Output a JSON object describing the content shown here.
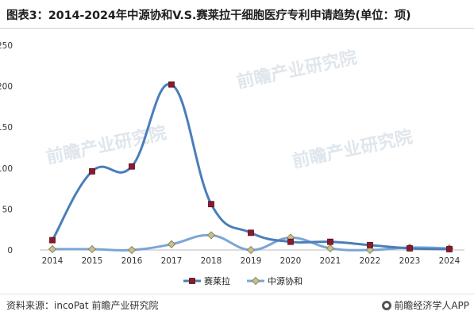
{
  "title": "图表3：2014-2024年中源协和V.S.赛莱拉干细胞医疗专利申请趋势(单位：项)",
  "source": "资料来源：incoPat 前瞻产业研究院",
  "brand": "前瞻经济学人APP",
  "watermark": "前瞻产业研究院",
  "chart_data": {
    "type": "line",
    "x": [
      "2014",
      "2015",
      "2016",
      "2017",
      "2018",
      "2019",
      "2020",
      "2021",
      "2022",
      "2023",
      "2024"
    ],
    "ylim": [
      0,
      250
    ],
    "yticks": [
      0,
      50,
      100,
      150,
      200,
      250
    ],
    "grid": false,
    "legend_position": "bottom",
    "series": [
      {
        "name": "赛莱拉",
        "values": [
          12,
          96,
          102,
          202,
          56,
          21,
          10,
          10,
          6,
          2,
          1
        ],
        "color": "#4a7ebb",
        "marker_color": "#8b1a2c"
      },
      {
        "name": "中源协和",
        "values": [
          1,
          1,
          0,
          7,
          18,
          0,
          15,
          2,
          0,
          3,
          2
        ],
        "color": "#7aa6d6",
        "marker_color": "#c8c08a"
      }
    ]
  }
}
